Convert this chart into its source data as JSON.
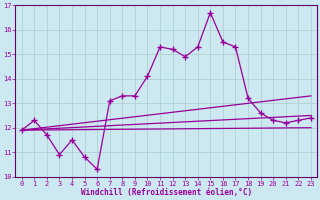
{
  "background_color": "#cce8f0",
  "line_color": "#990099",
  "grid_color": "#aacccc",
  "spine_color": "#660066",
  "xlim": [
    -0.5,
    23.5
  ],
  "ylim": [
    10,
    17
  ],
  "yticks": [
    10,
    11,
    12,
    13,
    14,
    15,
    16,
    17
  ],
  "xticks": [
    0,
    1,
    2,
    3,
    4,
    5,
    6,
    7,
    8,
    9,
    10,
    11,
    12,
    13,
    14,
    15,
    16,
    17,
    18,
    19,
    20,
    21,
    22,
    23
  ],
  "xlabel": "Windchill (Refroidissement éolien,°C)",
  "main_x": [
    0,
    1,
    2,
    3,
    4,
    5,
    6,
    7,
    8,
    9,
    10,
    11,
    12,
    13,
    14,
    15,
    16,
    17,
    18,
    19,
    20,
    21,
    22,
    23
  ],
  "main_y": [
    11.9,
    12.3,
    11.7,
    10.9,
    11.5,
    10.8,
    10.3,
    13.1,
    13.3,
    13.3,
    14.1,
    15.3,
    15.2,
    14.9,
    15.3,
    16.7,
    15.5,
    15.3,
    13.2,
    12.6,
    12.3,
    12.2,
    12.3,
    12.4
  ],
  "trend1_x": [
    0,
    23
  ],
  "trend1_y": [
    11.9,
    13.3
  ],
  "trend2_x": [
    0,
    23
  ],
  "trend2_y": [
    11.9,
    12.5
  ],
  "trend3_x": [
    0,
    23
  ],
  "trend3_y": [
    11.9,
    12.0
  ],
  "tick_fontsize": 5.0,
  "xlabel_fontsize": 5.5
}
